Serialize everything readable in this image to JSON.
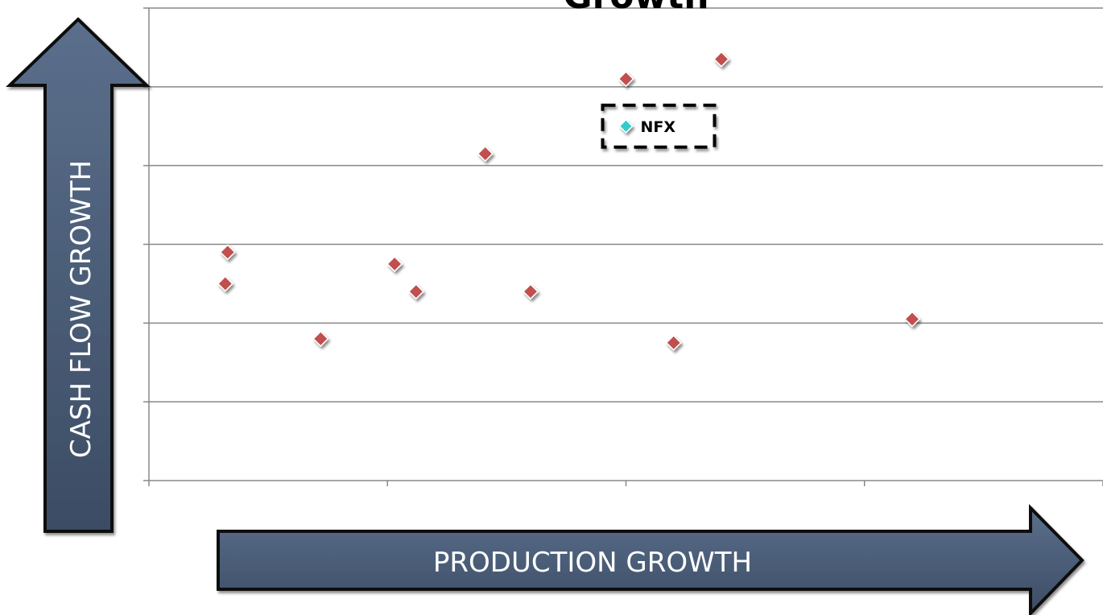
{
  "chart_data": {
    "type": "scatter",
    "title": "Growth",
    "xlabel": "PRODUCTION GROWTH",
    "ylabel": "CASH FLOW GROWTH",
    "xlim": [
      0,
      4
    ],
    "ylim": [
      0,
      6
    ],
    "grid": "horizontal",
    "tick_labels_shown": false,
    "series": [
      {
        "color": "#c0504d",
        "marker": "diamond",
        "points": [
          {
            "x": 0.33,
            "y": 2.9
          },
          {
            "x": 0.32,
            "y": 2.5
          },
          {
            "x": 0.72,
            "y": 1.8
          },
          {
            "x": 1.03,
            "y": 2.75
          },
          {
            "x": 1.12,
            "y": 2.4
          },
          {
            "x": 1.41,
            "y": 4.15
          },
          {
            "x": 1.6,
            "y": 2.4
          },
          {
            "x": 2.0,
            "y": 5.1
          },
          {
            "x": 2.2,
            "y": 1.75
          },
          {
            "x": 2.4,
            "y": 5.35
          },
          {
            "x": 3.2,
            "y": 2.05
          }
        ]
      },
      {
        "name": "NFX",
        "color": "#33cccc",
        "marker": "diamond",
        "points": [
          {
            "x": 2.0,
            "y": 4.5,
            "label": "NFX"
          }
        ]
      }
    ]
  }
}
